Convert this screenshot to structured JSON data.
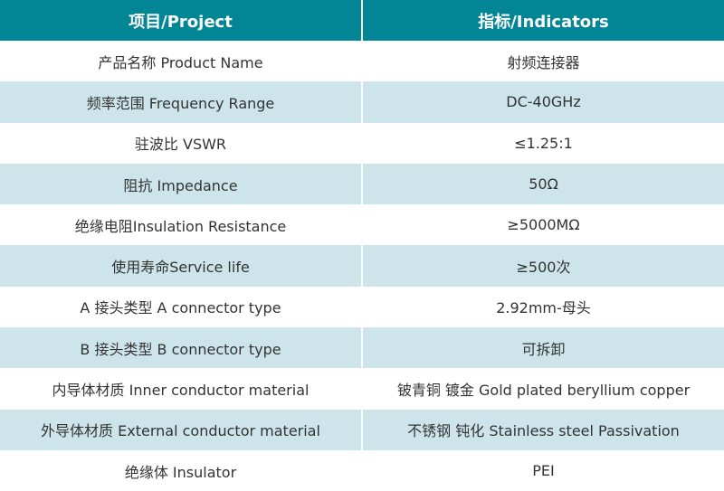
{
  "colors": {
    "header_bg": "#028594",
    "alt_row_bg": "#cde5ea",
    "text": "#333333"
  },
  "header": {
    "project": "项目/Project",
    "indicators": "指标/Indicators"
  },
  "rows": [
    {
      "project": "产品名称 Product Name",
      "indicator": "射频连接器"
    },
    {
      "project": "频率范围 Frequency Range",
      "indicator": "DC-40GHz"
    },
    {
      "project": "驻波比 VSWR",
      "indicator": "≤1.25:1"
    },
    {
      "project": "阻抗 Impedance",
      "indicator": "50Ω"
    },
    {
      "project": "绝缘电阻Insulation Resistance",
      "indicator": "≥5000MΩ"
    },
    {
      "project": "使用寿命Service life",
      "indicator": "≥500次"
    },
    {
      "project": "A 接头类型 A connector type",
      "indicator": "2.92mm-母头"
    },
    {
      "project": "B 接头类型 B connector type",
      "indicator": "可拆卸"
    },
    {
      "project": "内导体材质 Inner conductor material",
      "indicator": "铍青铜 镀金 Gold plated beryllium copper"
    },
    {
      "project": "外导体材质 External conductor material",
      "indicator": "不锈钢 钝化 Stainless steel Passivation"
    },
    {
      "project": "绝缘体 Insulator",
      "indicator": "PEI"
    }
  ]
}
